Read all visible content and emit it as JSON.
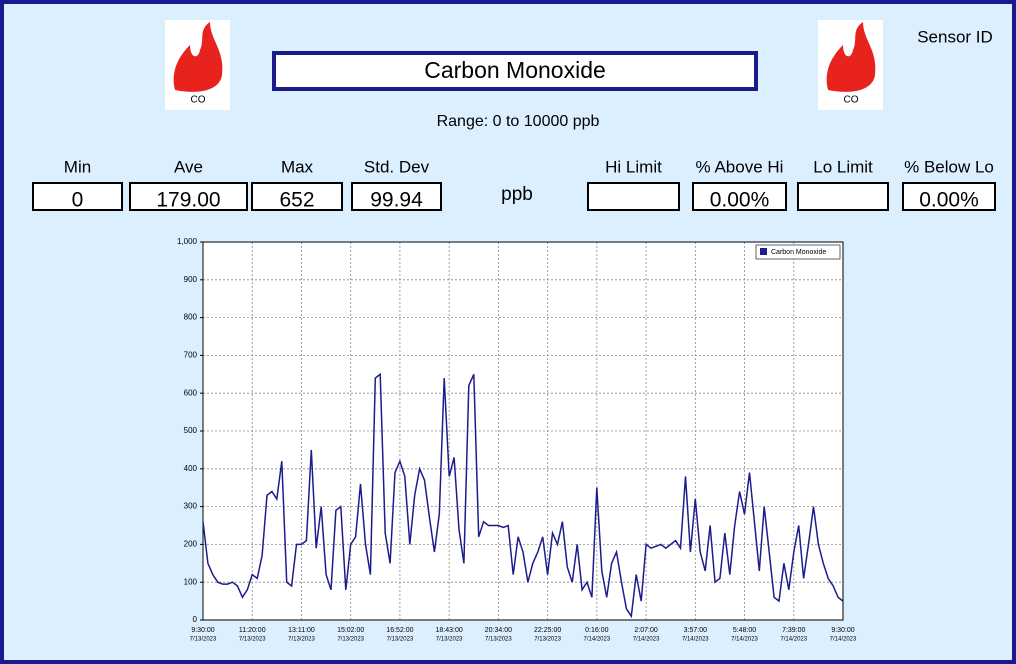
{
  "header": {
    "title": "Carbon Monoxide",
    "sensor_label": "Sensor ID",
    "range": "Range: 0 to 10000 ppb",
    "icons": [
      "CO",
      "CO"
    ],
    "unit": "ppb"
  },
  "stats": [
    {
      "label": "Min",
      "value": "0"
    },
    {
      "label": "Ave",
      "value": "179.00"
    },
    {
      "label": "Max",
      "value": "652"
    },
    {
      "label": "Std. Dev",
      "value": "99.94"
    },
    {
      "label": "Hi Limit"
    },
    {
      "label": "% Above Hi",
      "value": "0.00%"
    },
    {
      "label": "Lo Limit"
    },
    {
      "label": "% Below Lo",
      "value": "0.00%"
    }
  ],
  "chart_data": {
    "type": "line",
    "xticks": [
      {
        "time": "9:30:00",
        "date": "7/13/2023"
      },
      {
        "time": "11:20:00",
        "date": "7/13/2023"
      },
      {
        "time": "13:11:00",
        "date": "7/13/2023"
      },
      {
        "time": "15:02:00",
        "date": "7/13/2023"
      },
      {
        "time": "16:52:00",
        "date": "7/13/2023"
      },
      {
        "time": "18:43:00",
        "date": "7/13/2023"
      },
      {
        "time": "20:34:00",
        "date": "7/13/2023"
      },
      {
        "time": "22:25:00",
        "date": "7/13/2023"
      },
      {
        "time": "0:16:00",
        "date": "7/14/2023"
      },
      {
        "time": "2:07:00",
        "date": "7/14/2023"
      },
      {
        "time": "3:57:00",
        "date": "7/14/2023"
      },
      {
        "time": "5:48:00",
        "date": "7/14/2023"
      },
      {
        "time": "7:39:00",
        "date": "7/14/2023"
      },
      {
        "time": "9:30:00",
        "date": "7/14/2023"
      }
    ],
    "ylim": [
      0,
      1000
    ],
    "yticks": [
      0,
      100,
      200,
      300,
      400,
      500,
      600,
      700,
      800,
      900,
      {
        "value": 1000,
        "label": "1,000"
      }
    ],
    "grid": true,
    "legend": "top-right",
    "series": [
      {
        "name": "Carbon Monoxide",
        "color": "#1c1c8e",
        "values": [
          260,
          150,
          120,
          100,
          95,
          95,
          100,
          90,
          60,
          80,
          120,
          110,
          170,
          330,
          340,
          320,
          420,
          100,
          90,
          200,
          200,
          210,
          450,
          190,
          300,
          120,
          80,
          290,
          300,
          80,
          200,
          220,
          360,
          200,
          120,
          640,
          650,
          230,
          150,
          390,
          420,
          380,
          200,
          330,
          400,
          370,
          270,
          180,
          280,
          640,
          380,
          430,
          240,
          150,
          620,
          650,
          220,
          260,
          250,
          250,
          250,
          245,
          250,
          120,
          220,
          180,
          100,
          150,
          180,
          220,
          120,
          230,
          200,
          260,
          140,
          100,
          200,
          80,
          100,
          60,
          350,
          130,
          60,
          150,
          180,
          100,
          30,
          10,
          120,
          50,
          200,
          190,
          195,
          200,
          190,
          200,
          210,
          190,
          380,
          180,
          320,
          180,
          130,
          250,
          100,
          110,
          230,
          120,
          250,
          340,
          280,
          390,
          260,
          130,
          300,
          180,
          60,
          50,
          150,
          80,
          180,
          250,
          110,
          200,
          300,
          200,
          150,
          110,
          90,
          60,
          50
        ]
      }
    ]
  }
}
